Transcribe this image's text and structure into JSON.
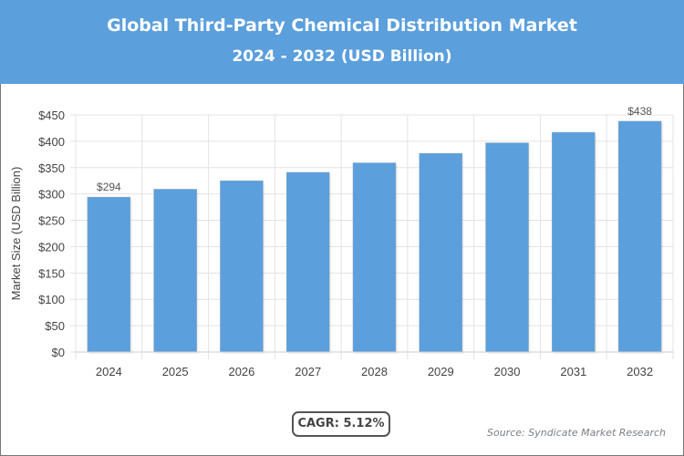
{
  "header": {
    "title": "Global Third-Party Chemical Distribution Market",
    "subtitle": "2024 - 2032 (USD Billion)"
  },
  "chart_data": {
    "type": "bar",
    "categories": [
      "2024",
      "2025",
      "2026",
      "2027",
      "2028",
      "2029",
      "2030",
      "2031",
      "2032"
    ],
    "values": [
      294,
      309,
      325,
      341,
      359,
      377,
      397,
      417,
      438
    ],
    "data_labels": {
      "0": "$294",
      "8": "$438"
    },
    "ylabel": "Market Size (USD Billion)",
    "ylim": [
      0,
      450
    ],
    "yticks": [
      0,
      50,
      100,
      150,
      200,
      250,
      300,
      350,
      400,
      450
    ],
    "ytick_labels": [
      "$0",
      "$50",
      "$100",
      "$150",
      "$200",
      "$250",
      "$300",
      "$350",
      "$400",
      "$450"
    ],
    "grid": true,
    "bar_color": "#5b9fdc"
  },
  "footer": {
    "cagr": "CAGR: 5.12%",
    "source": "Source: Syndicate Market Research"
  }
}
